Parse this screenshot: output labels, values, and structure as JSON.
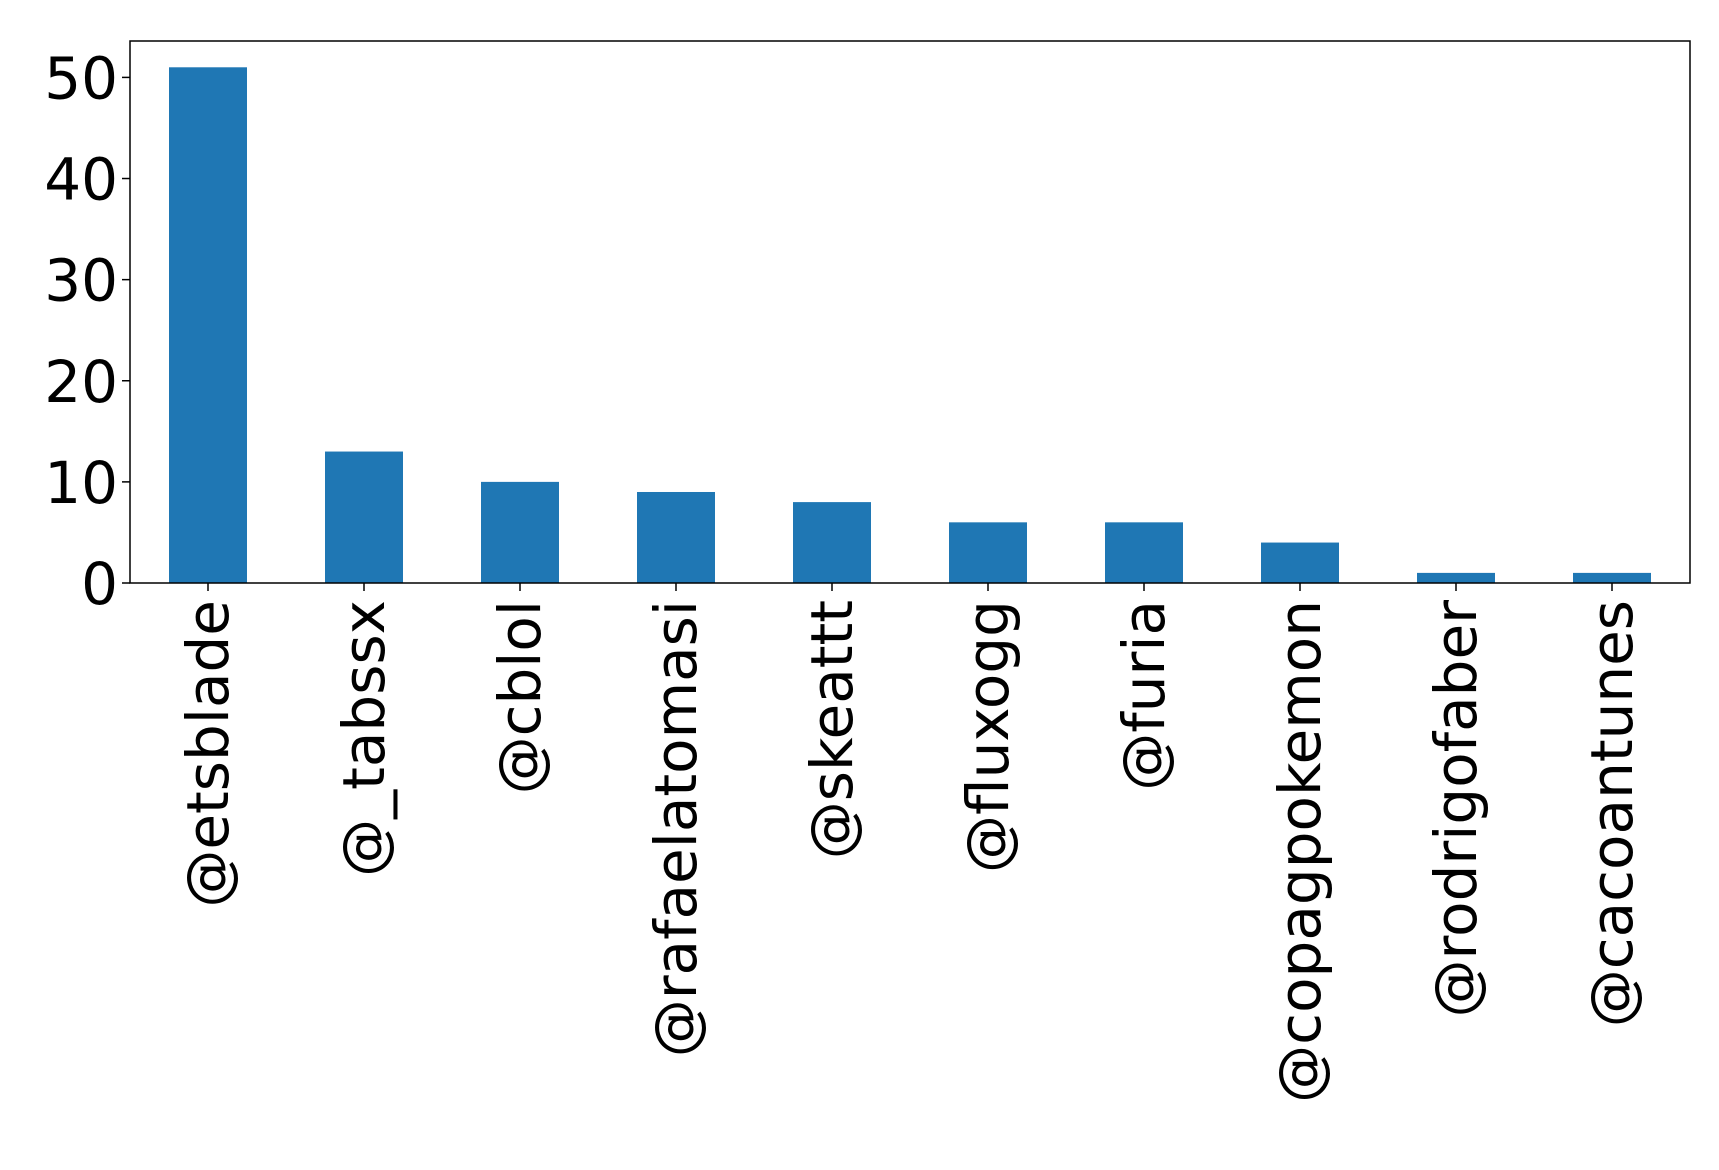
{
  "chart_data": {
    "type": "bar",
    "categories": [
      "@etsblade",
      "@_tabssx",
      "@cblol",
      "@rafaelatomasi",
      "@skeattt",
      "@fluxogg",
      "@furia",
      "@copagpokemon",
      "@rodrigofaber",
      "@cacoantunes"
    ],
    "values": [
      51,
      13,
      10,
      9,
      8,
      6,
      6,
      4,
      1,
      1
    ],
    "ylim": [
      0,
      53.6
    ],
    "yticks": [
      0,
      10,
      20,
      30,
      40,
      50
    ],
    "title": "",
    "xlabel": "",
    "ylabel": "",
    "grid": false,
    "colors": {
      "bar": "#1f77b4",
      "axis": "#000000",
      "background": "#ffffff"
    }
  }
}
